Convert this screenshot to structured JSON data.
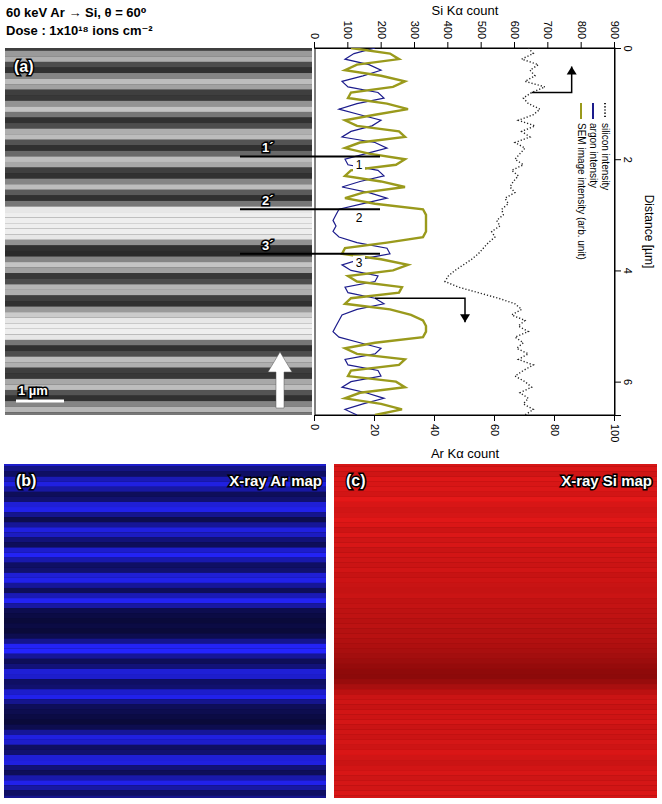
{
  "figure": {
    "header": [
      "60 keV Ar → Si, θ = 60⁰",
      "Dose : 1x10¹⁸ ions cm⁻²"
    ],
    "panels": [
      {
        "label": "(a)",
        "scale_bar": "1 µm"
      },
      {
        "label": "(b)",
        "title": "X-ray Ar map"
      },
      {
        "label": "(c)",
        "title": "X-ray Si map"
      }
    ]
  },
  "chart_data": {
    "type": "line",
    "xlabel": "Distance [µm]",
    "ylabel": "Si Kα count",
    "y2label": "Ar Kα count",
    "x": [
      0,
      0.1,
      0.2,
      0.3,
      0.4,
      0.5,
      0.6,
      0.7,
      0.8,
      0.9,
      1,
      1.1,
      1.2,
      1.3,
      1.4,
      1.5,
      1.6,
      1.7,
      1.8,
      1.9,
      2,
      2.1,
      2.2,
      2.3,
      2.4,
      2.5,
      2.6,
      2.7,
      2.8,
      2.9,
      3,
      3.1,
      3.2,
      3.3,
      3.4,
      3.5,
      3.6,
      3.7,
      3.8,
      3.9,
      4,
      4.1,
      4.2,
      4.3,
      4.4,
      4.5,
      4.6,
      4.7,
      4.8,
      4.9,
      5,
      5.1,
      5.2,
      5.3,
      5.4,
      5.5,
      5.6,
      5.7,
      5.8,
      5.9,
      6,
      6.1,
      6.2,
      6.3,
      6.4,
      6.5,
      6.6
    ],
    "xlim": [
      0,
      6.6
    ],
    "xticks": [
      0,
      2,
      4,
      6
    ],
    "ylim": [
      0,
      900
    ],
    "yticks": [
      0,
      100,
      200,
      300,
      400,
      500,
      600,
      700,
      800,
      900
    ],
    "y2lim": [
      0,
      100
    ],
    "y2ticks": [
      0,
      20,
      40,
      60,
      80,
      100
    ],
    "legend": "top right",
    "series": [
      {
        "name": "silicon intensity",
        "color": "#222222",
        "line_style": "dotted",
        "values": [
          640,
          655,
          620,
          670,
          645,
          660,
          630,
          690,
          650,
          625,
          640,
          675,
          655,
          610,
          660,
          620,
          645,
          600,
          630,
          615,
          600,
          625,
          590,
          610,
          595,
          585,
          600,
          570,
          580,
          560,
          565,
          545,
          555,
          530,
          540,
          520,
          505,
          490,
          470,
          445,
          420,
          400,
          390,
          430,
          490,
          550,
          600,
          620,
          590,
          630,
          610,
          640,
          600,
          625,
          605,
          640,
          610,
          655,
          625,
          600,
          630,
          650,
          615,
          640,
          625,
          655,
          630
        ]
      },
      {
        "name": "argon intensity",
        "color": "#1c1c8c",
        "axis": "y2",
        "values": [
          20,
          13,
          10,
          18,
          22,
          16,
          9,
          11,
          21,
          23,
          14,
          8,
          15,
          22,
          19,
          12,
          9,
          20,
          24,
          17,
          10,
          11,
          21,
          23,
          15,
          9,
          18,
          24,
          16,
          8,
          7,
          6,
          7,
          6,
          8,
          14,
          24,
          25,
          15,
          9,
          12,
          21,
          20,
          10,
          11,
          20,
          23,
          14,
          9,
          8,
          7,
          6,
          8,
          15,
          22,
          20,
          10,
          11,
          21,
          22,
          12,
          9,
          17,
          23,
          16,
          10,
          14
        ]
      },
      {
        "name": "SEM image intensity (arb. unit)",
        "color": "#9a9a1c",
        "axis": "y2",
        "values": [
          12,
          25,
          28,
          14,
          10,
          22,
          30,
          26,
          12,
          11,
          24,
          31,
          20,
          10,
          14,
          28,
          30,
          15,
          10,
          18,
          30,
          27,
          12,
          10,
          22,
          30,
          16,
          10,
          20,
          36,
          37,
          37,
          37,
          37,
          36,
          24,
          10,
          9,
          22,
          31,
          26,
          11,
          14,
          29,
          28,
          12,
          10,
          25,
          32,
          36,
          37,
          37,
          36,
          20,
          10,
          14,
          30,
          28,
          12,
          11,
          27,
          30,
          15,
          10,
          22,
          29,
          20
        ]
      }
    ],
    "markers": [
      {
        "labels": [
          "1´",
          "1"
        ],
        "x": 1.95
      },
      {
        "labels": [
          "2´",
          "2"
        ],
        "x": 2.9
      },
      {
        "labels": [
          "3´",
          "3"
        ],
        "x": 3.7
      }
    ]
  }
}
